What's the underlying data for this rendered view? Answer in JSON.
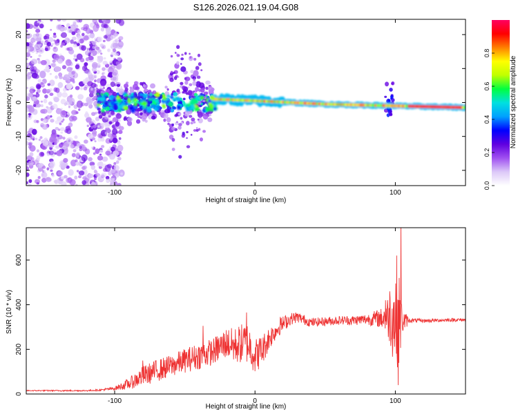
{
  "figure_title": "S126.2026.021.19.04.G08",
  "chart_data": [
    {
      "type": "heatmap",
      "title": "S126.2026.021.19.04.G08",
      "xlabel": "Height of straight line (km)",
      "ylabel": "Frequency (Hz)",
      "xlim": [
        -163,
        150
      ],
      "ylim": [
        -24.5,
        24.5
      ],
      "x_ticks": [
        -100,
        0,
        100
      ],
      "x_tick_labels": [
        "-100",
        "0",
        "100"
      ],
      "y_ticks": [
        -20,
        -10,
        0,
        10,
        20
      ],
      "y_tick_labels": [
        "-20",
        "-10",
        "0",
        "10",
        "20"
      ],
      "colorbar": {
        "label": "Normalized spectral amplitude",
        "range": [
          0,
          1
        ],
        "ticks": [
          0.0,
          0.2,
          0.4,
          0.6,
          0.8
        ],
        "tick_labels": [
          "0.0",
          "0.2",
          "0.4",
          "0.6",
          "0.8"
        ],
        "colors": [
          "#ffffff",
          "#dcc8f8",
          "#a050f0",
          "#6000e0",
          "#0000ff",
          "#00a0ff",
          "#00e0e0",
          "#00ff40",
          "#c0ff00",
          "#ffff00",
          "#ff8000",
          "#ff0000",
          "#ff0060"
        ]
      },
      "regions": [
        {
          "name": "noise",
          "x_range": [
            -163,
            -100
          ],
          "freq_range": [
            -24.5,
            24.5
          ],
          "amplitude": 0.1
        },
        {
          "name": "scattered",
          "x_range": [
            -112,
            -30
          ],
          "freq_range": [
            -8,
            8
          ],
          "amplitude": 0.25
        },
        {
          "name": "tone",
          "x_range": [
            -30,
            150
          ],
          "freq_center": [
            1,
            0.5,
            -0.5,
            -1.5
          ],
          "freq_center_x": [
            -30,
            0,
            50,
            150
          ],
          "amplitude": 0.75
        },
        {
          "name": "strong_tone",
          "x_range": [
            110,
            148
          ],
          "freq_center": -1.5,
          "amplitude": 0.9
        }
      ]
    },
    {
      "type": "line",
      "xlabel": "Height of straight line (km)",
      "ylabel": "SNR (10 * v/v)",
      "xlim": [
        -163,
        150
      ],
      "ylim": [
        0,
        745
      ],
      "x_ticks": [
        -100,
        0,
        100
      ],
      "x_tick_labels": [
        "-100",
        "0",
        "100"
      ],
      "y_ticks": [
        0,
        200,
        400,
        600
      ],
      "y_tick_labels": [
        "0",
        "200",
        "400",
        "600"
      ],
      "color": "#ee3333",
      "series": [
        {
          "name": "SNR",
          "x": [
            -163,
            -140,
            -120,
            -110,
            -100,
            -90,
            -80,
            -70,
            -60,
            -50,
            -40,
            -30,
            -20,
            -15,
            -10,
            -5,
            0,
            5,
            10,
            15,
            20,
            25,
            30,
            40,
            50,
            60,
            70,
            80,
            90,
            95,
            100,
            103,
            105,
            110,
            120,
            130,
            140,
            150
          ],
          "y": [
            15,
            15,
            15,
            18,
            25,
            45,
            80,
            105,
            125,
            150,
            170,
            190,
            230,
            215,
            225,
            230,
            170,
            195,
            250,
            285,
            315,
            335,
            345,
            320,
            325,
            330,
            330,
            335,
            340,
            345,
            340,
            330,
            325,
            330,
            328,
            330,
            332,
            332
          ],
          "noise_amplitude": [
            2,
            3,
            3,
            4,
            8,
            25,
            45,
            50,
            50,
            55,
            60,
            60,
            70,
            80,
            90,
            95,
            80,
            70,
            55,
            40,
            35,
            28,
            25,
            20,
            20,
            20,
            22,
            25,
            45,
            100,
            230,
            200,
            60,
            10,
            8,
            8,
            8,
            8
          ],
          "spikes": [
            [
              -80,
              150
            ],
            [
              -37,
              305
            ],
            [
              -6,
              365
            ],
            [
              4,
              245
            ],
            [
              18,
              345
            ],
            [
              93,
              420
            ],
            [
              96,
              460
            ],
            [
              101,
              620
            ],
            [
              104,
              760
            ],
            [
              102,
              40
            ]
          ]
        }
      ]
    }
  ]
}
